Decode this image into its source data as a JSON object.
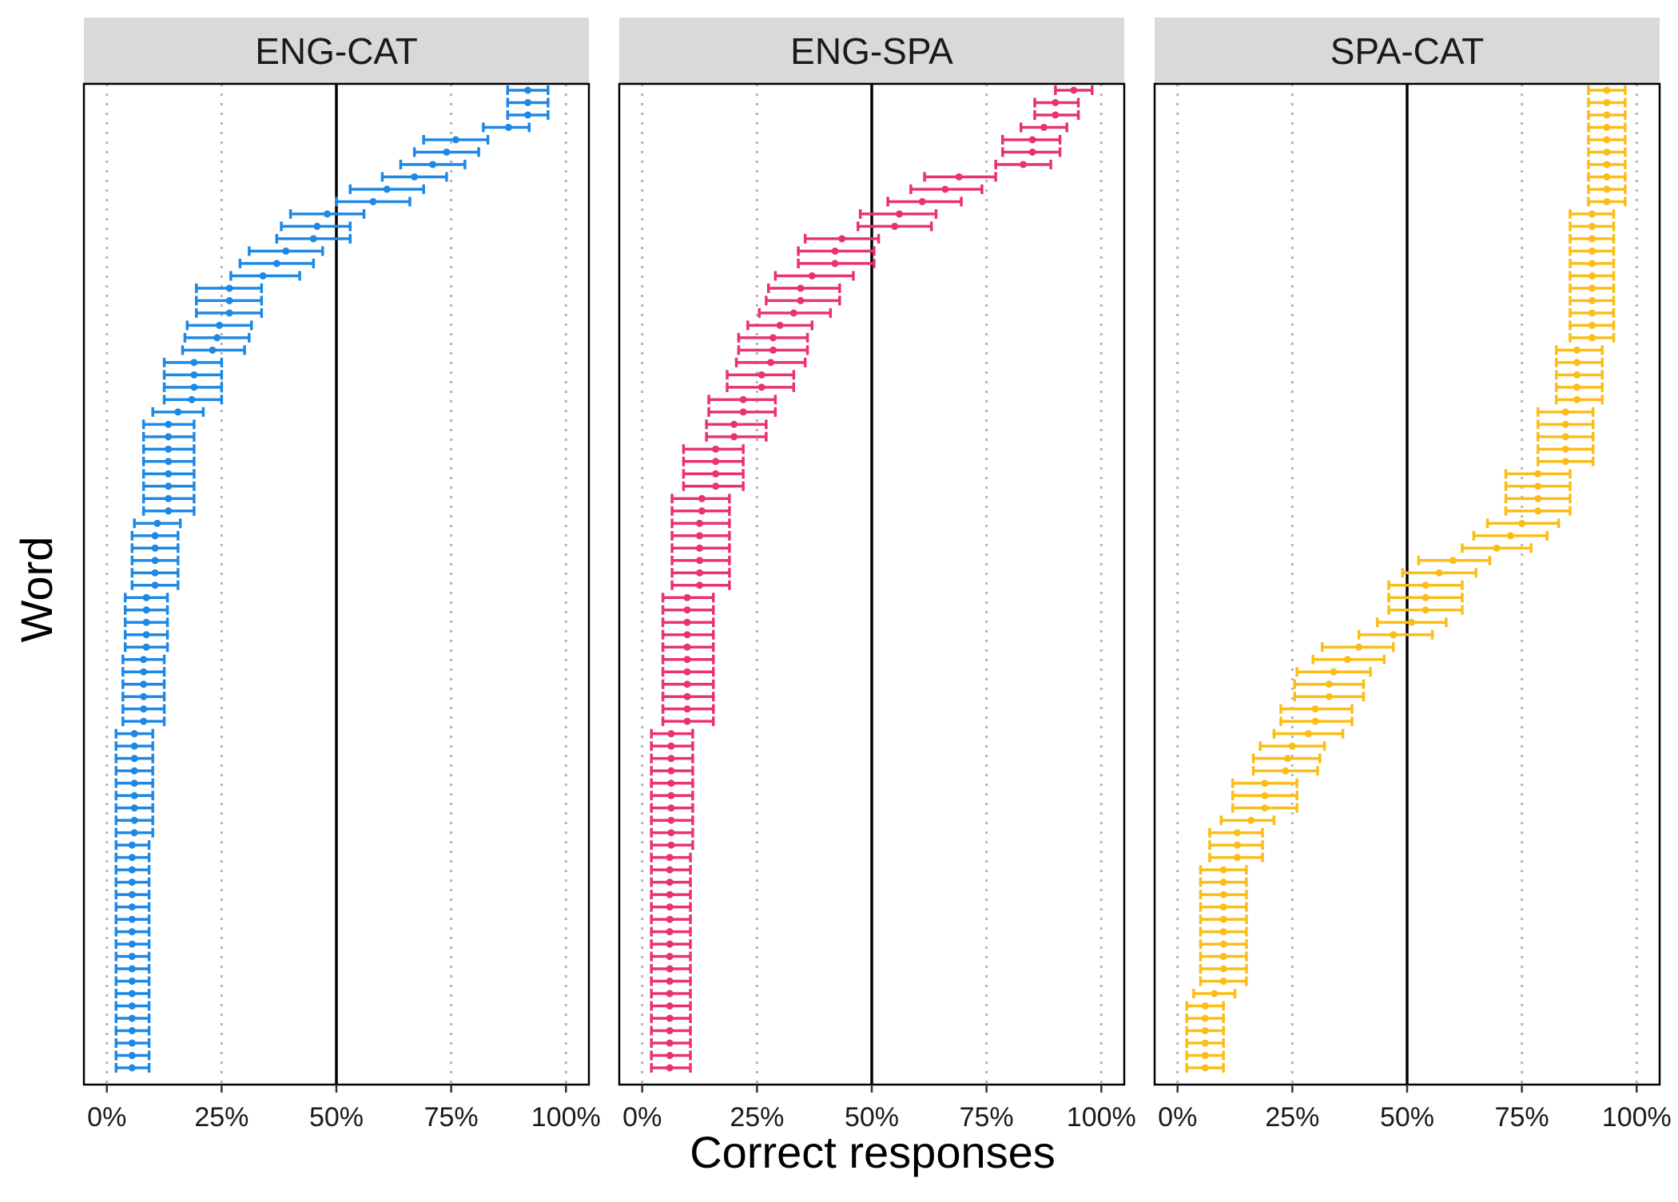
{
  "chart_data": {
    "type": "errorbar-dotplot",
    "title": "",
    "xlabel": "Correct responses",
    "ylabel": "Word",
    "x_ticks": [
      "0%",
      "25%",
      "50%",
      "75%",
      "100%"
    ],
    "xlim": [
      -5,
      105
    ],
    "reference_line": 50,
    "grid": "vertical dotted at 0%, 25%, 75%, 100%",
    "legend": "none",
    "panels": [
      {
        "name": "ENG-CAT",
        "color": "#1e88e5",
        "points": [
          [
            91.7,
            87.3,
            96.1
          ],
          [
            91.7,
            87.3,
            96.1
          ],
          [
            91.7,
            87.3,
            96.1
          ],
          [
            87.5,
            82.0,
            92.0
          ],
          [
            76.0,
            69.0,
            83.0
          ],
          [
            74.0,
            67.0,
            81.0
          ],
          [
            71.0,
            64.0,
            78.0
          ],
          [
            67.0,
            60.0,
            74.0
          ],
          [
            61.0,
            53.0,
            69.0
          ],
          [
            58.0,
            50.0,
            66.0
          ],
          [
            48.0,
            40.0,
            56.0
          ],
          [
            45.8,
            38.0,
            53.0
          ],
          [
            45.0,
            37.0,
            53.0
          ],
          [
            39.0,
            31.0,
            47.0
          ],
          [
            37.0,
            29.0,
            45.0
          ],
          [
            34.0,
            27.0,
            42.0
          ],
          [
            26.7,
            19.5,
            33.7
          ],
          [
            26.7,
            19.5,
            33.7
          ],
          [
            26.7,
            19.5,
            33.7
          ],
          [
            24.5,
            17.5,
            31.5
          ],
          [
            24.0,
            17.0,
            31.0
          ],
          [
            23.0,
            16.5,
            30.0
          ],
          [
            19.0,
            12.5,
            25.0
          ],
          [
            19.0,
            12.5,
            25.0
          ],
          [
            19.0,
            12.5,
            25.0
          ],
          [
            18.5,
            12.5,
            25.0
          ],
          [
            15.5,
            10.0,
            21.0
          ],
          [
            13.4,
            8.0,
            19.0
          ],
          [
            13.4,
            8.0,
            19.0
          ],
          [
            13.4,
            8.0,
            19.0
          ],
          [
            13.4,
            8.0,
            19.0
          ],
          [
            13.4,
            8.0,
            19.0
          ],
          [
            13.4,
            8.0,
            19.0
          ],
          [
            13.4,
            8.0,
            19.0
          ],
          [
            13.4,
            8.0,
            19.0
          ],
          [
            11.0,
            6.0,
            16.0
          ],
          [
            10.5,
            5.5,
            15.5
          ],
          [
            10.5,
            5.5,
            15.5
          ],
          [
            10.5,
            5.5,
            15.5
          ],
          [
            10.5,
            5.5,
            15.5
          ],
          [
            10.5,
            5.5,
            15.5
          ],
          [
            8.6,
            4.0,
            13.2
          ],
          [
            8.6,
            4.0,
            13.2
          ],
          [
            8.6,
            4.0,
            13.2
          ],
          [
            8.6,
            4.0,
            13.2
          ],
          [
            8.6,
            4.0,
            13.2
          ],
          [
            8.0,
            3.5,
            12.5
          ],
          [
            8.0,
            3.5,
            12.5
          ],
          [
            8.0,
            3.5,
            12.5
          ],
          [
            8.0,
            3.5,
            12.5
          ],
          [
            8.0,
            3.5,
            12.5
          ],
          [
            8.0,
            3.5,
            12.5
          ],
          [
            6.0,
            2.0,
            10.0
          ],
          [
            6.0,
            2.0,
            10.0
          ],
          [
            6.0,
            2.0,
            10.0
          ],
          [
            6.0,
            2.0,
            10.0
          ],
          [
            6.0,
            2.0,
            10.0
          ],
          [
            6.0,
            2.0,
            10.0
          ],
          [
            6.0,
            2.0,
            10.0
          ],
          [
            6.0,
            2.0,
            10.0
          ],
          [
            6.0,
            2.0,
            10.0
          ],
          [
            5.5,
            2.0,
            9.2
          ],
          [
            5.5,
            2.0,
            9.2
          ],
          [
            5.5,
            2.0,
            9.2
          ],
          [
            5.5,
            2.0,
            9.2
          ],
          [
            5.5,
            2.0,
            9.2
          ],
          [
            5.5,
            2.0,
            9.2
          ],
          [
            5.5,
            2.0,
            9.2
          ],
          [
            5.5,
            2.0,
            9.2
          ],
          [
            5.5,
            2.0,
            9.2
          ],
          [
            5.5,
            2.0,
            9.2
          ],
          [
            5.5,
            2.0,
            9.2
          ],
          [
            5.5,
            2.0,
            9.2
          ],
          [
            5.5,
            2.0,
            9.2
          ],
          [
            5.5,
            2.0,
            9.2
          ],
          [
            5.5,
            2.0,
            9.2
          ],
          [
            5.5,
            2.0,
            9.2
          ],
          [
            5.5,
            2.0,
            9.2
          ],
          [
            5.5,
            2.0,
            9.2
          ],
          [
            5.5,
            2.0,
            9.2
          ]
        ]
      },
      {
        "name": "ENG-SPA",
        "color": "#e8336f",
        "points": [
          [
            94.0,
            90.0,
            98.0
          ],
          [
            90.0,
            85.5,
            95.0
          ],
          [
            90.0,
            85.5,
            95.0
          ],
          [
            87.5,
            82.5,
            92.5
          ],
          [
            85.0,
            78.5,
            91.0
          ],
          [
            85.0,
            78.5,
            91.0
          ],
          [
            83.0,
            77.0,
            89.0
          ],
          [
            69.0,
            61.5,
            77.0
          ],
          [
            66.0,
            58.5,
            74.0
          ],
          [
            61.0,
            53.5,
            69.5
          ],
          [
            56.0,
            47.5,
            64.0
          ],
          [
            55.0,
            47.0,
            63.0
          ],
          [
            43.5,
            35.5,
            51.5
          ],
          [
            42.0,
            34.0,
            50.5
          ],
          [
            42.0,
            34.0,
            50.5
          ],
          [
            37.0,
            29.0,
            46.0
          ],
          [
            34.5,
            27.5,
            43.0
          ],
          [
            34.5,
            27.0,
            43.0
          ],
          [
            33.0,
            25.5,
            41.0
          ],
          [
            30.0,
            23.0,
            37.0
          ],
          [
            28.5,
            21.0,
            36.0
          ],
          [
            28.5,
            21.0,
            36.0
          ],
          [
            28.0,
            20.5,
            35.5
          ],
          [
            26.0,
            18.5,
            33.0
          ],
          [
            26.0,
            18.5,
            33.0
          ],
          [
            22.0,
            14.5,
            29.0
          ],
          [
            22.0,
            14.5,
            29.0
          ],
          [
            20.0,
            14.0,
            27.0
          ],
          [
            20.0,
            14.0,
            27.0
          ],
          [
            16.0,
            9.0,
            22.0
          ],
          [
            16.0,
            9.0,
            22.0
          ],
          [
            16.0,
            9.0,
            22.0
          ],
          [
            16.0,
            9.0,
            22.0
          ],
          [
            13.0,
            6.5,
            19.0
          ],
          [
            13.0,
            6.5,
            19.0
          ],
          [
            12.5,
            6.5,
            19.0
          ],
          [
            12.5,
            6.5,
            19.0
          ],
          [
            12.5,
            6.5,
            19.0
          ],
          [
            12.5,
            6.5,
            19.0
          ],
          [
            12.5,
            6.5,
            19.0
          ],
          [
            12.5,
            6.5,
            19.0
          ],
          [
            9.8,
            4.5,
            15.5
          ],
          [
            9.8,
            4.5,
            15.5
          ],
          [
            9.8,
            4.5,
            15.5
          ],
          [
            9.8,
            4.5,
            15.5
          ],
          [
            9.8,
            4.5,
            15.5
          ],
          [
            9.8,
            4.5,
            15.5
          ],
          [
            9.8,
            4.5,
            15.5
          ],
          [
            9.8,
            4.5,
            15.5
          ],
          [
            9.8,
            4.5,
            15.5
          ],
          [
            9.8,
            4.5,
            15.5
          ],
          [
            9.8,
            4.5,
            15.5
          ],
          [
            6.3,
            2.0,
            11.0
          ],
          [
            6.3,
            2.0,
            11.0
          ],
          [
            6.3,
            2.0,
            11.0
          ],
          [
            6.3,
            2.0,
            11.0
          ],
          [
            6.3,
            2.0,
            11.0
          ],
          [
            6.3,
            2.0,
            11.0
          ],
          [
            6.3,
            2.0,
            11.0
          ],
          [
            6.3,
            2.0,
            11.0
          ],
          [
            6.3,
            2.0,
            11.0
          ],
          [
            6.3,
            2.0,
            11.0
          ],
          [
            6.0,
            2.0,
            10.5
          ],
          [
            6.0,
            2.0,
            10.5
          ],
          [
            6.0,
            2.0,
            10.5
          ],
          [
            6.0,
            2.0,
            10.5
          ],
          [
            6.0,
            2.0,
            10.5
          ],
          [
            6.0,
            2.0,
            10.5
          ],
          [
            6.0,
            2.0,
            10.5
          ],
          [
            6.0,
            2.0,
            10.5
          ],
          [
            6.0,
            2.0,
            10.5
          ],
          [
            6.0,
            2.0,
            10.5
          ],
          [
            6.0,
            2.0,
            10.5
          ],
          [
            6.0,
            2.0,
            10.5
          ],
          [
            6.0,
            2.0,
            10.5
          ],
          [
            6.0,
            2.0,
            10.5
          ],
          [
            6.0,
            2.0,
            10.5
          ],
          [
            6.0,
            2.0,
            10.5
          ],
          [
            6.0,
            2.0,
            10.5
          ],
          [
            6.0,
            2.0,
            10.5
          ]
        ]
      },
      {
        "name": "SPA-CAT",
        "color": "#fbbd17",
        "points": [
          [
            93.5,
            89.5,
            97.5
          ],
          [
            93.5,
            89.5,
            97.5
          ],
          [
            93.5,
            89.5,
            97.5
          ],
          [
            93.5,
            89.5,
            97.5
          ],
          [
            93.5,
            89.5,
            97.5
          ],
          [
            93.5,
            89.5,
            97.5
          ],
          [
            93.5,
            89.5,
            97.5
          ],
          [
            93.5,
            89.5,
            97.5
          ],
          [
            93.5,
            89.5,
            97.5
          ],
          [
            93.5,
            89.5,
            97.5
          ],
          [
            90.3,
            85.5,
            95.0
          ],
          [
            90.3,
            85.5,
            95.0
          ],
          [
            90.3,
            85.5,
            95.0
          ],
          [
            90.3,
            85.5,
            95.0
          ],
          [
            90.3,
            85.5,
            95.0
          ],
          [
            90.3,
            85.5,
            95.0
          ],
          [
            90.3,
            85.5,
            95.0
          ],
          [
            90.3,
            85.5,
            95.0
          ],
          [
            90.3,
            85.5,
            95.0
          ],
          [
            90.3,
            85.5,
            95.0
          ],
          [
            90.3,
            85.5,
            95.0
          ],
          [
            87.0,
            82.5,
            92.5
          ],
          [
            87.0,
            82.5,
            92.5
          ],
          [
            87.0,
            82.5,
            92.5
          ],
          [
            87.0,
            82.5,
            92.5
          ],
          [
            87.0,
            82.5,
            92.5
          ],
          [
            84.5,
            78.5,
            90.5
          ],
          [
            84.5,
            78.5,
            90.5
          ],
          [
            84.5,
            78.5,
            90.5
          ],
          [
            84.5,
            78.5,
            90.5
          ],
          [
            84.5,
            78.5,
            90.5
          ],
          [
            78.5,
            71.5,
            85.5
          ],
          [
            78.5,
            71.5,
            85.5
          ],
          [
            78.5,
            71.5,
            85.5
          ],
          [
            78.5,
            71.5,
            85.5
          ],
          [
            75.0,
            67.5,
            83.0
          ],
          [
            72.5,
            64.5,
            80.5
          ],
          [
            69.5,
            62.0,
            77.0
          ],
          [
            60.0,
            52.5,
            68.0
          ],
          [
            57.0,
            49.0,
            65.0
          ],
          [
            54.0,
            46.0,
            62.0
          ],
          [
            54.0,
            46.0,
            62.0
          ],
          [
            54.0,
            46.0,
            62.0
          ],
          [
            51.0,
            43.5,
            58.5
          ],
          [
            47.0,
            39.5,
            55.5
          ],
          [
            39.5,
            31.5,
            47.0
          ],
          [
            37.0,
            29.5,
            45.0
          ],
          [
            34.0,
            26.0,
            42.0
          ],
          [
            33.0,
            25.5,
            40.5
          ],
          [
            33.0,
            25.5,
            40.5
          ],
          [
            30.0,
            22.5,
            38.0
          ],
          [
            30.0,
            22.5,
            38.0
          ],
          [
            28.5,
            21.0,
            36.0
          ],
          [
            25.0,
            18.0,
            32.0
          ],
          [
            24.0,
            16.5,
            31.0
          ],
          [
            23.5,
            16.5,
            30.5
          ],
          [
            19.0,
            12.0,
            26.0
          ],
          [
            19.0,
            12.0,
            26.0
          ],
          [
            19.0,
            12.0,
            26.0
          ],
          [
            16.0,
            9.5,
            21.0
          ],
          [
            13.0,
            7.0,
            18.5
          ],
          [
            13.0,
            7.0,
            18.5
          ],
          [
            13.0,
            7.0,
            18.5
          ],
          [
            10.0,
            5.0,
            15.0
          ],
          [
            10.0,
            5.0,
            15.0
          ],
          [
            10.0,
            5.0,
            15.0
          ],
          [
            10.0,
            5.0,
            15.0
          ],
          [
            10.0,
            5.0,
            15.0
          ],
          [
            10.0,
            5.0,
            15.0
          ],
          [
            10.0,
            5.0,
            15.0
          ],
          [
            10.0,
            5.0,
            15.0
          ],
          [
            10.0,
            5.0,
            15.0
          ],
          [
            10.0,
            5.0,
            15.0
          ],
          [
            8.0,
            3.5,
            12.5
          ],
          [
            6.0,
            2.0,
            10.0
          ],
          [
            6.0,
            2.0,
            10.0
          ],
          [
            6.0,
            2.0,
            10.0
          ],
          [
            6.0,
            2.0,
            10.0
          ],
          [
            6.0,
            2.0,
            10.0
          ],
          [
            6.0,
            2.0,
            10.0
          ]
        ]
      }
    ]
  }
}
